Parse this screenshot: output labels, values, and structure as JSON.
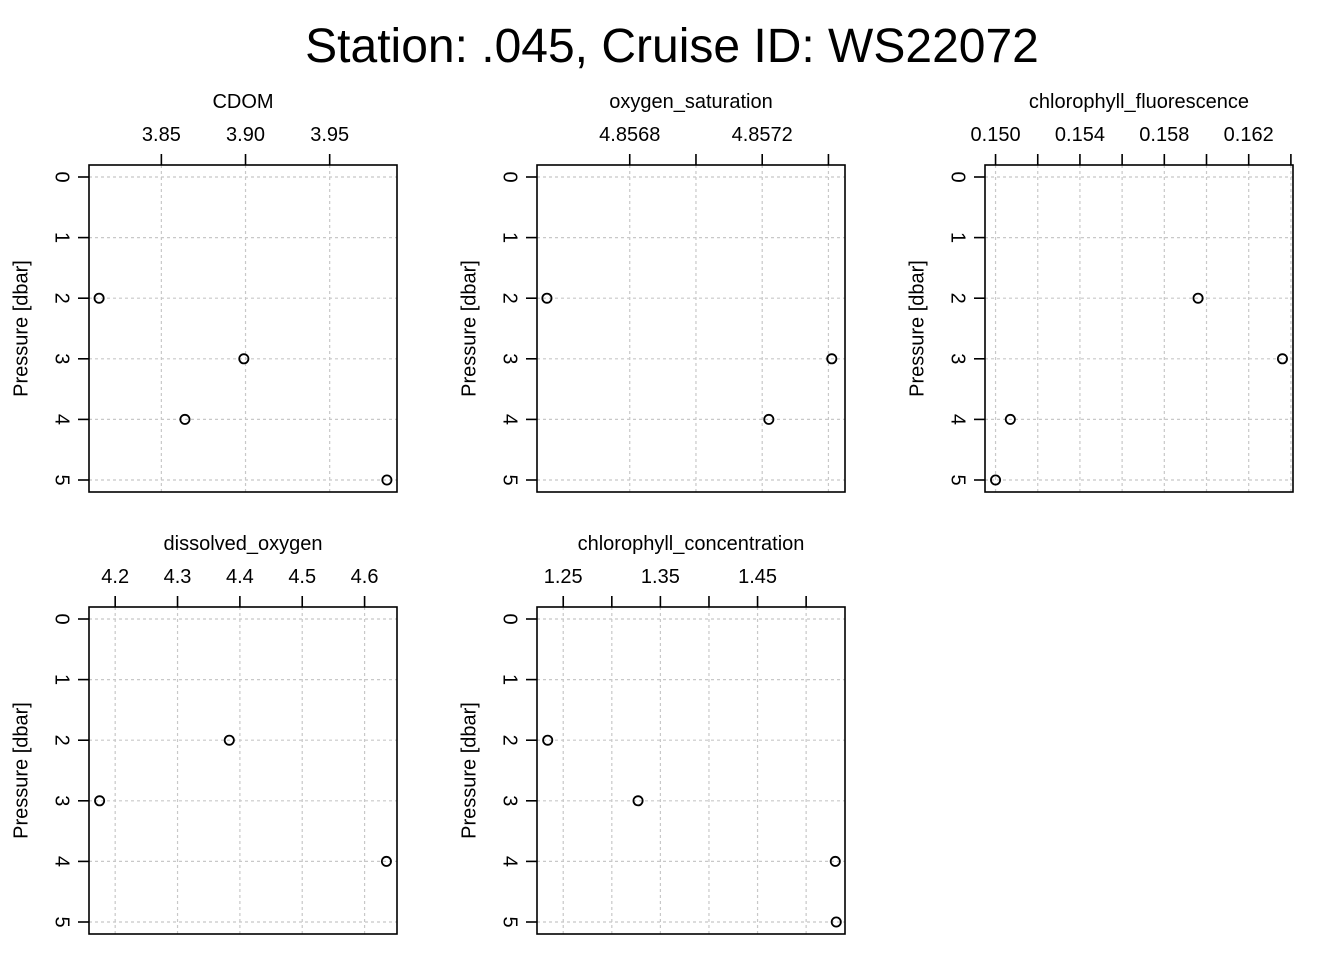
{
  "title": "Station: .045, Cruise ID: WS22072",
  "colors": {
    "grid": "#c8c8c8",
    "frame": "#000000",
    "point": "#000000"
  },
  "chart_data": [
    {
      "type": "scatter",
      "title": "CDOM",
      "xlabel": "",
      "ylabel": "Pressure [dbar]",
      "x_axis_position": "top",
      "y_reversed": true,
      "grid": true,
      "xlim": [
        3.807,
        3.99
      ],
      "ylim": [
        0,
        5
      ],
      "xticks": [
        3.85,
        3.9,
        3.95
      ],
      "xtick_labels": [
        "3.85",
        "3.90",
        "3.95"
      ],
      "yticks": [
        0,
        1,
        2,
        3,
        4,
        5
      ],
      "ytick_labels": [
        "0",
        "1",
        "2",
        "3",
        "4",
        "5"
      ],
      "points": [
        {
          "x": 3.813,
          "y": 2
        },
        {
          "x": 3.899,
          "y": 3
        },
        {
          "x": 3.864,
          "y": 4
        },
        {
          "x": 3.984,
          "y": 5
        }
      ]
    },
    {
      "type": "scatter",
      "title": "oxygen_saturation",
      "xlabel": "",
      "ylabel": "Pressure [dbar]",
      "x_axis_position": "top",
      "y_reversed": true,
      "grid": true,
      "xlim": [
        4.85652,
        4.85745
      ],
      "ylim": [
        0,
        5
      ],
      "xticks": [
        4.8568,
        4.857,
        4.8572,
        4.8574
      ],
      "xtick_labels": [
        "4.8568",
        "",
        "4.8572",
        ""
      ],
      "yticks": [
        0,
        1,
        2,
        3,
        4,
        5
      ],
      "ytick_labels": [
        "0",
        "1",
        "2",
        "3",
        "4",
        "5"
      ],
      "points": [
        {
          "x": 4.85655,
          "y": 2
        },
        {
          "x": 4.85741,
          "y": 3
        },
        {
          "x": 4.85722,
          "y": 4
        }
      ]
    },
    {
      "type": "scatter",
      "title": "chlorophyll_fluorescence",
      "xlabel": "",
      "ylabel": "Pressure [dbar]",
      "x_axis_position": "top",
      "y_reversed": true,
      "grid": true,
      "xlim": [
        0.1495,
        0.1641
      ],
      "ylim": [
        0,
        5
      ],
      "xticks": [
        0.15,
        0.152,
        0.154,
        0.156,
        0.158,
        0.16,
        0.162,
        0.164
      ],
      "xtick_labels": [
        "0.150",
        "",
        "0.154",
        "",
        "0.158",
        "",
        "0.162",
        ""
      ],
      "yticks": [
        0,
        1,
        2,
        3,
        4,
        5
      ],
      "ytick_labels": [
        "0",
        "1",
        "2",
        "3",
        "4",
        "5"
      ],
      "points": [
        {
          "x": 0.1596,
          "y": 2
        },
        {
          "x": 0.1636,
          "y": 3
        },
        {
          "x": 0.1507,
          "y": 4
        },
        {
          "x": 0.15,
          "y": 5
        }
      ]
    },
    {
      "type": "scatter",
      "title": "dissolved_oxygen",
      "xlabel": "",
      "ylabel": "Pressure [dbar]",
      "x_axis_position": "top",
      "y_reversed": true,
      "grid": true,
      "xlim": [
        4.158,
        4.652
      ],
      "ylim": [
        0,
        5
      ],
      "xticks": [
        4.2,
        4.3,
        4.4,
        4.5,
        4.6
      ],
      "xtick_labels": [
        "4.2",
        "4.3",
        "4.4",
        "4.5",
        "4.6"
      ],
      "yticks": [
        0,
        1,
        2,
        3,
        4,
        5
      ],
      "ytick_labels": [
        "0",
        "1",
        "2",
        "3",
        "4",
        "5"
      ],
      "points": [
        {
          "x": 4.383,
          "y": 2
        },
        {
          "x": 4.175,
          "y": 3
        },
        {
          "x": 4.635,
          "y": 4
        }
      ]
    },
    {
      "type": "scatter",
      "title": "chlorophyll_concentration",
      "xlabel": "",
      "ylabel": "Pressure [dbar]",
      "x_axis_position": "top",
      "y_reversed": true,
      "grid": true,
      "xlim": [
        1.223,
        1.54
      ],
      "ylim": [
        0,
        5
      ],
      "xticks": [
        1.25,
        1.3,
        1.35,
        1.4,
        1.45,
        1.5
      ],
      "xtick_labels": [
        "1.25",
        "",
        "1.35",
        "",
        "1.45",
        ""
      ],
      "yticks": [
        0,
        1,
        2,
        3,
        4,
        5
      ],
      "ytick_labels": [
        "0",
        "1",
        "2",
        "3",
        "4",
        "5"
      ],
      "points": [
        {
          "x": 1.234,
          "y": 2
        },
        {
          "x": 1.327,
          "y": 3
        },
        {
          "x": 1.53,
          "y": 4
        },
        {
          "x": 1.531,
          "y": 5
        }
      ]
    }
  ]
}
